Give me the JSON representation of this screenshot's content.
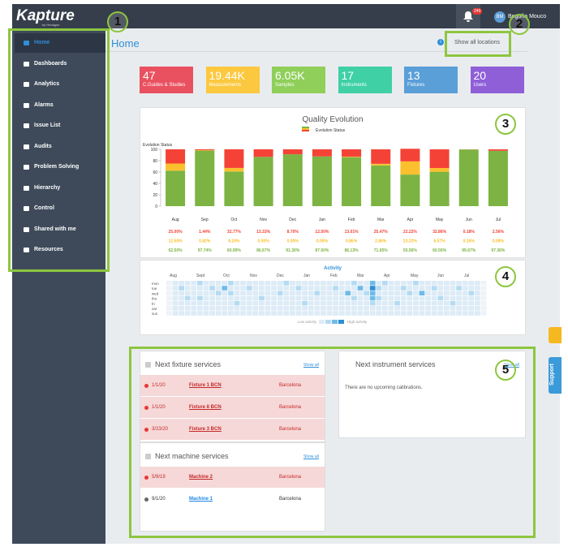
{
  "header": {
    "logo": "Kapture",
    "logo_sub": "by Hexagon",
    "notification_count": "249",
    "avatar": "BM",
    "user": "Begoña Mouco"
  },
  "sidebar": [
    "Home",
    "Dashboards",
    "Analytics",
    "Alarms",
    "Issue List",
    "Audits",
    "Problem Solving",
    "Hierarchy",
    "Control",
    "Shared with me",
    "Resources"
  ],
  "page_title": "Home",
  "location_filter": "Show all locations",
  "kpis": [
    {
      "value": "47",
      "label": "C.Guides & Studies",
      "color": "#ea5160"
    },
    {
      "value": "19.44K",
      "label": "Measurements",
      "color": "#fbc83f"
    },
    {
      "value": "6.05K",
      "label": "Samples",
      "color": "#8fcf5a"
    },
    {
      "value": "17",
      "label": "Instruments",
      "color": "#3fd0a6"
    },
    {
      "value": "13",
      "label": "Fixtures",
      "color": "#5a9fd8"
    },
    {
      "value": "20",
      "label": "Users",
      "color": "#8f5fd8"
    }
  ],
  "quality_chart": {
    "type": "bar",
    "title": "Quality Evolution",
    "legend": "Evolution Status",
    "y_label": "Evolution Status",
    "categories": [
      "Aug",
      "Sep",
      "Oct",
      "Nov",
      "Dec",
      "Jan",
      "Feb",
      "Mar",
      "Apr",
      "May",
      "Jun",
      "Jul"
    ],
    "ylim": [
      0,
      100
    ],
    "yticks": [
      0,
      20,
      40,
      60,
      80,
      100
    ],
    "series": [
      {
        "color": "#7cb342",
        "values": [
          62.5,
          97.74,
          60.99,
          86.67,
          91.3,
          87.5,
          86.13,
          71.65,
          55.56,
          60.56,
          99.67,
          97.36
        ],
        "value_labels": [
          "62.50%",
          "97.74%",
          "60.99%",
          "86.67%",
          "91.30%",
          "87.50%",
          "86.13%",
          "71.65%",
          "55.56%",
          "60.56%",
          "99.67%",
          "97.36%"
        ]
      },
      {
        "color": "#fbc02d",
        "values": [
          12.5,
          0.82,
          6.24,
          0,
          0,
          0,
          0.86,
          2.86,
          23.22,
          6.57,
          0.16,
          0.08
        ],
        "value_labels": [
          "12.50%",
          "0.82%",
          "6.24%",
          "0.00%",
          "0.00%",
          "0.00%",
          "0.86%",
          "2.86%",
          "23.22%",
          "6.57%",
          "0.16%",
          "0.08%"
        ]
      },
      {
        "color": "#f44336",
        "values": [
          25,
          1.44,
          32.77,
          13.33,
          8.7,
          12.5,
          13.01,
          25.47,
          22.22,
          32.86,
          0.18,
          2.56
        ],
        "value_labels": [
          "25.00%",
          "1.44%",
          "32.77%",
          "13.33%",
          "8.70%",
          "12.50%",
          "13.01%",
          "25.47%",
          "22.22%",
          "32.86%",
          "0.18%",
          "2.56%"
        ]
      }
    ]
  },
  "activity": {
    "title": "Activity",
    "months": [
      "Aug",
      "Sept",
      "Oct",
      "Nov",
      "Dec",
      "Jan",
      "Feb",
      "Mar",
      "Apr",
      "May",
      "Jun",
      "Jul"
    ],
    "days": [
      "mon",
      "tue",
      "wed",
      "thu",
      "fri",
      "sat",
      "sun"
    ],
    "legend_low": "Low activity",
    "legend_high": "High activity",
    "levels": [
      [
        0,
        1,
        1,
        1,
        1,
        2,
        1,
        1,
        1,
        1,
        2,
        1,
        1,
        1,
        1,
        1,
        1,
        1,
        1,
        2,
        1,
        1,
        1,
        1,
        1,
        1,
        1,
        1,
        1,
        1,
        2,
        1,
        1,
        3,
        1,
        2,
        1,
        1,
        1,
        1,
        2,
        1,
        1,
        1,
        1,
        1,
        1,
        1,
        1,
        1,
        1,
        0
      ],
      [
        0,
        1,
        2,
        1,
        1,
        1,
        1,
        2,
        1,
        3,
        1,
        1,
        1,
        2,
        1,
        1,
        1,
        1,
        1,
        1,
        1,
        2,
        1,
        1,
        1,
        1,
        1,
        2,
        1,
        1,
        1,
        3,
        1,
        4,
        2,
        1,
        1,
        1,
        2,
        1,
        1,
        1,
        1,
        2,
        1,
        1,
        1,
        2,
        1,
        1,
        1,
        0
      ],
      [
        0,
        1,
        1,
        1,
        1,
        1,
        1,
        1,
        2,
        1,
        2,
        1,
        1,
        1,
        1,
        1,
        1,
        1,
        2,
        1,
        1,
        1,
        1,
        1,
        2,
        1,
        1,
        1,
        1,
        3,
        1,
        1,
        2,
        3,
        1,
        1,
        1,
        1,
        1,
        2,
        1,
        3,
        1,
        1,
        1,
        1,
        1,
        1,
        1,
        2,
        1,
        0
      ],
      [
        0,
        1,
        1,
        2,
        1,
        2,
        1,
        1,
        1,
        1,
        1,
        1,
        1,
        1,
        1,
        2,
        1,
        1,
        1,
        1,
        1,
        1,
        1,
        1,
        1,
        1,
        1,
        1,
        1,
        1,
        2,
        1,
        1,
        3,
        2,
        1,
        1,
        1,
        1,
        1,
        1,
        1,
        1,
        1,
        2,
        1,
        1,
        1,
        1,
        1,
        1,
        0
      ],
      [
        0,
        1,
        1,
        1,
        1,
        1,
        1,
        1,
        1,
        1,
        1,
        2,
        1,
        1,
        1,
        1,
        1,
        1,
        1,
        1,
        1,
        1,
        2,
        1,
        1,
        1,
        1,
        1,
        1,
        1,
        1,
        1,
        1,
        2,
        1,
        1,
        1,
        2,
        1,
        1,
        1,
        1,
        1,
        1,
        1,
        1,
        2,
        1,
        1,
        1,
        1,
        0
      ],
      [
        0,
        1,
        1,
        1,
        1,
        1,
        1,
        1,
        1,
        1,
        1,
        1,
        1,
        1,
        1,
        1,
        1,
        1,
        1,
        1,
        1,
        1,
        1,
        1,
        1,
        1,
        1,
        1,
        1,
        1,
        1,
        1,
        1,
        1,
        1,
        1,
        1,
        1,
        1,
        1,
        1,
        1,
        1,
        1,
        1,
        1,
        1,
        1,
        1,
        1,
        1,
        0
      ],
      [
        0,
        1,
        1,
        1,
        1,
        1,
        1,
        1,
        1,
        1,
        1,
        1,
        1,
        1,
        1,
        1,
        1,
        1,
        1,
        1,
        1,
        1,
        1,
        1,
        1,
        1,
        1,
        1,
        1,
        1,
        1,
        1,
        1,
        1,
        1,
        1,
        1,
        1,
        1,
        1,
        1,
        1,
        1,
        1,
        1,
        1,
        1,
        1,
        1,
        1,
        1,
        0
      ]
    ]
  },
  "fixture_services": {
    "title": "Next fixture services",
    "show_all": "Show all",
    "rows": [
      {
        "date": "1/1/20",
        "name": "Fixture 1 BCN",
        "location": "Barcelona"
      },
      {
        "date": "1/1/20",
        "name": "Fixture 8 BCN",
        "location": "Barcelona"
      },
      {
        "date": "3/23/20",
        "name": "Fixture 3 BCN",
        "location": "Barcelona"
      }
    ]
  },
  "machine_services": {
    "title": "Next machine services",
    "show_all": "Show all",
    "rows": [
      {
        "date": "5/9/19",
        "name": "Machine 2",
        "location": "Barcelona",
        "overdue": true
      },
      {
        "date": "9/1/20",
        "name": "Machine 1",
        "location": "Barcelona",
        "overdue": false
      }
    ]
  },
  "instrument_services": {
    "title": "Next instrument services",
    "show_all": "Show all",
    "empty": "There are no upcoming calibrations."
  },
  "support": "Support",
  "annotations": [
    "1",
    "2",
    "3",
    "4",
    "5"
  ]
}
